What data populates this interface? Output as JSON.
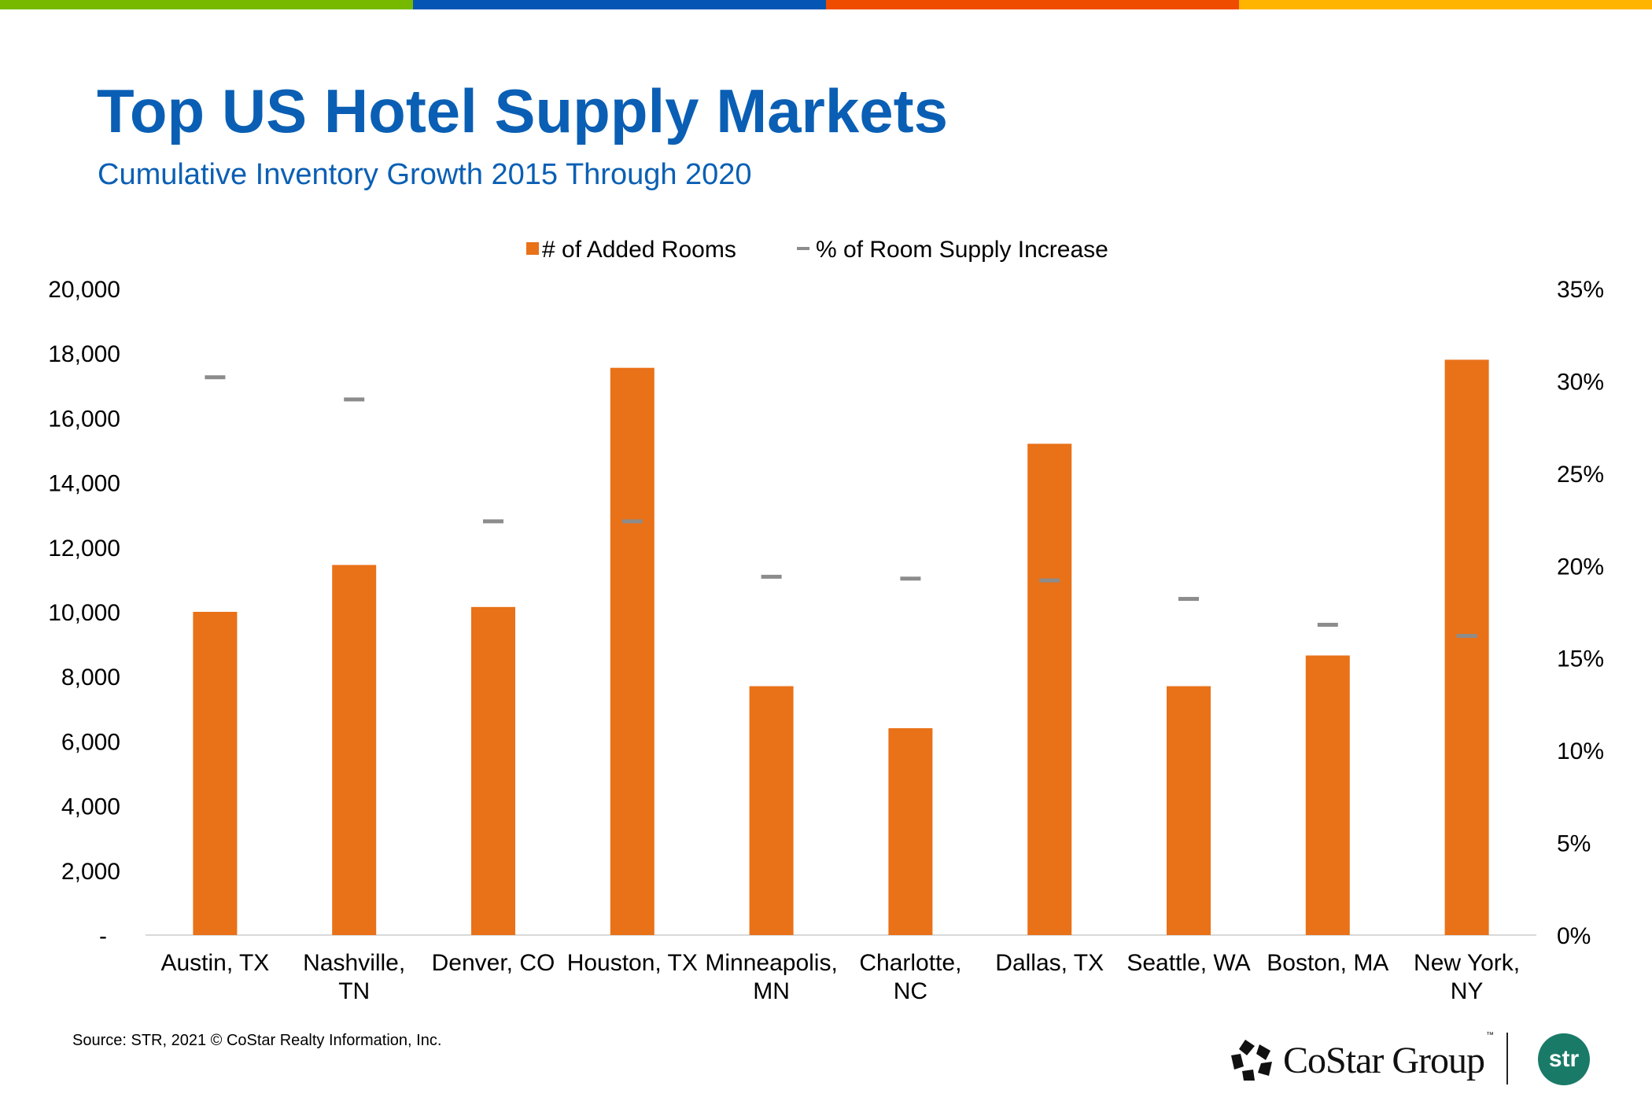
{
  "brand_colors": {
    "bar_segment_1": "#76b900",
    "bar_segment_2": "#0556b4",
    "bar_segment_3": "#f04c00",
    "bar_segment_4": "#ffb400",
    "title": "#0a5fb4",
    "bars": "#e97118",
    "markers": "#8c8c8c",
    "str_logo": "#1a7a68"
  },
  "header": {
    "title": "Top US Hotel Supply Markets",
    "subtitle": "Cumulative Inventory Growth 2015 Through 2020"
  },
  "footer": {
    "source": "Source: STR, 2021 © CoStar Realty Information, Inc.",
    "costar_logo_text": "CoStar Group",
    "costar_tm": "™",
    "str_logo_text": "str"
  },
  "chart_data": {
    "type": "bar",
    "title": "Top US Hotel Supply Markets",
    "subtitle": "Cumulative Inventory Growth 2015 Through 2020",
    "categories": [
      [
        "Austin, TX"
      ],
      [
        "Nashville,",
        "TN"
      ],
      [
        "Denver, CO"
      ],
      [
        "Houston, TX"
      ],
      [
        "Minneapolis,",
        "MN"
      ],
      [
        "Charlotte,",
        "NC"
      ],
      [
        "Dallas, TX"
      ],
      [
        "Seattle, WA"
      ],
      [
        "Boston, MA"
      ],
      [
        "New York,",
        "NY"
      ]
    ],
    "series": [
      {
        "name": "# of Added Rooms",
        "type": "bar",
        "axis": "left",
        "values": [
          10000,
          11450,
          10150,
          17550,
          7700,
          6400,
          15200,
          7700,
          8650,
          17800
        ]
      },
      {
        "name": "% of Room Supply Increase",
        "type": "marker",
        "axis": "right",
        "values": [
          30.2,
          29.0,
          22.4,
          22.4,
          19.4,
          19.3,
          19.2,
          18.2,
          16.8,
          16.2
        ]
      }
    ],
    "left_axis": {
      "range": [
        0,
        20000
      ],
      "ticks": [
        "-",
        "2,000",
        "4,000",
        "6,000",
        "8,000",
        "10,000",
        "12,000",
        "14,000",
        "16,000",
        "18,000",
        "20,000"
      ],
      "tick_values": [
        0,
        2000,
        4000,
        6000,
        8000,
        10000,
        12000,
        14000,
        16000,
        18000,
        20000
      ]
    },
    "right_axis": {
      "range": [
        0,
        35
      ],
      "ticks": [
        "0%",
        "5%",
        "10%",
        "15%",
        "20%",
        "25%",
        "30%",
        "35%"
      ],
      "tick_values": [
        0,
        5,
        10,
        15,
        20,
        25,
        30,
        35
      ]
    },
    "xlabel": "",
    "ylabel": "",
    "grid": false,
    "legend": {
      "position": "top-center",
      "entries": [
        "# of Added Rooms",
        "% of Room Supply Increase"
      ]
    }
  }
}
